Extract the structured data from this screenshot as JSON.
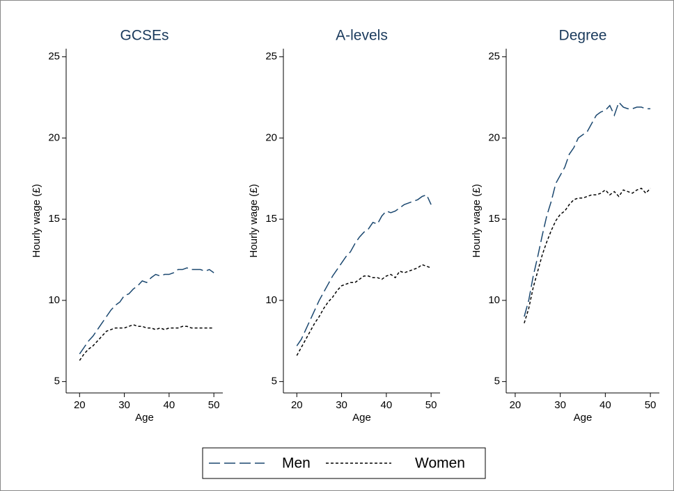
{
  "chart_data": [
    {
      "type": "line",
      "title": "GCSEs",
      "xlabel": "Age",
      "ylabel": "Hourly wage (£)",
      "x": [
        20,
        21,
        22,
        23,
        24,
        25,
        26,
        27,
        28,
        29,
        30,
        31,
        32,
        33,
        34,
        35,
        36,
        37,
        38,
        39,
        40,
        41,
        42,
        43,
        44,
        45,
        46,
        47,
        48,
        49,
        50
      ],
      "series": [
        {
          "name": "Men",
          "color": "#1a476f",
          "dash": "long",
          "values": [
            6.7,
            7.1,
            7.5,
            7.8,
            8.2,
            8.6,
            9.0,
            9.4,
            9.7,
            9.9,
            10.3,
            10.4,
            10.7,
            10.9,
            11.2,
            11.1,
            11.4,
            11.6,
            11.5,
            11.6,
            11.6,
            11.7,
            11.9,
            11.9,
            12.0,
            11.9,
            11.9,
            11.9,
            11.8,
            11.9,
            11.7
          ]
        },
        {
          "name": "Women",
          "color": "#000000",
          "dash": "short",
          "values": [
            6.3,
            6.7,
            7.0,
            7.2,
            7.5,
            7.8,
            8.1,
            8.2,
            8.3,
            8.3,
            8.3,
            8.4,
            8.5,
            8.4,
            8.4,
            8.3,
            8.3,
            8.2,
            8.3,
            8.2,
            8.3,
            8.3,
            8.3,
            8.4,
            8.4,
            8.3,
            8.3,
            8.3,
            8.3,
            8.3,
            8.3
          ]
        }
      ],
      "xlim": [
        17,
        52
      ],
      "ylim": [
        4.3,
        25.5
      ],
      "xticks": [
        20,
        30,
        40,
        50
      ],
      "yticks": [
        5,
        10,
        15,
        20,
        25
      ],
      "grid": false,
      "legend": "bottom"
    },
    {
      "type": "line",
      "title": "A-levels",
      "xlabel": "Age",
      "ylabel": "Hourly wage (£)",
      "x": [
        20,
        21,
        22,
        23,
        24,
        25,
        26,
        27,
        28,
        29,
        30,
        31,
        32,
        33,
        34,
        35,
        36,
        37,
        38,
        39,
        40,
        41,
        42,
        43,
        44,
        45,
        46,
        47,
        48,
        49,
        50
      ],
      "series": [
        {
          "color": "#1a476f",
          "dash": "long",
          "values": [
            7.2,
            7.6,
            8.2,
            8.8,
            9.4,
            10.0,
            10.5,
            11.0,
            11.5,
            11.9,
            12.3,
            12.7,
            13.0,
            13.5,
            13.9,
            14.2,
            14.4,
            14.8,
            14.7,
            15.2,
            15.5,
            15.4,
            15.5,
            15.7,
            15.9,
            16.0,
            16.1,
            16.2,
            16.4,
            16.5,
            15.9
          ]
        },
        {
          "color": "#000000",
          "dash": "short",
          "values": [
            6.6,
            7.1,
            7.6,
            8.1,
            8.6,
            9.0,
            9.5,
            9.9,
            10.2,
            10.6,
            10.9,
            11.0,
            11.1,
            11.1,
            11.3,
            11.5,
            11.5,
            11.4,
            11.4,
            11.3,
            11.5,
            11.6,
            11.4,
            11.8,
            11.7,
            11.8,
            11.9,
            12.0,
            12.2,
            12.1,
            12.0
          ]
        }
      ],
      "xlim": [
        17,
        52
      ],
      "ylim": [
        4.3,
        25.5
      ],
      "xticks": [
        20,
        30,
        40,
        50
      ],
      "yticks": [
        5,
        10,
        15,
        20,
        25
      ],
      "grid": false
    },
    {
      "type": "line",
      "title": "Degree",
      "xlabel": "Age",
      "ylabel": "Hourly wage (£)",
      "x": [
        22,
        23,
        24,
        25,
        26,
        27,
        28,
        29,
        30,
        31,
        32,
        33,
        34,
        35,
        36,
        37,
        38,
        39,
        40,
        41,
        42,
        43,
        44,
        45,
        46,
        47,
        48,
        49,
        50
      ],
      "series": [
        {
          "color": "#1a476f",
          "dash": "long",
          "values": [
            9.0,
            10.0,
            11.5,
            12.7,
            14.0,
            15.2,
            16.1,
            17.2,
            17.7,
            18.2,
            19.0,
            19.4,
            20.0,
            20.2,
            20.4,
            20.9,
            21.4,
            21.6,
            21.7,
            22.0,
            21.4,
            22.2,
            21.9,
            21.8,
            21.8,
            21.9,
            21.9,
            21.8,
            21.8
          ]
        },
        {
          "color": "#000000",
          "dash": "short",
          "values": [
            8.6,
            9.5,
            10.8,
            11.8,
            12.8,
            13.6,
            14.3,
            14.9,
            15.3,
            15.5,
            15.9,
            16.2,
            16.3,
            16.3,
            16.4,
            16.5,
            16.5,
            16.6,
            16.8,
            16.5,
            16.7,
            16.4,
            16.8,
            16.7,
            16.6,
            16.8,
            16.9,
            16.6,
            16.9
          ]
        }
      ],
      "xlim": [
        18,
        52
      ],
      "ylim": [
        4.3,
        25.5
      ],
      "xticks": [
        20,
        30,
        40,
        50
      ],
      "yticks": [
        5,
        10,
        15,
        20,
        25
      ],
      "grid": false
    }
  ]
}
